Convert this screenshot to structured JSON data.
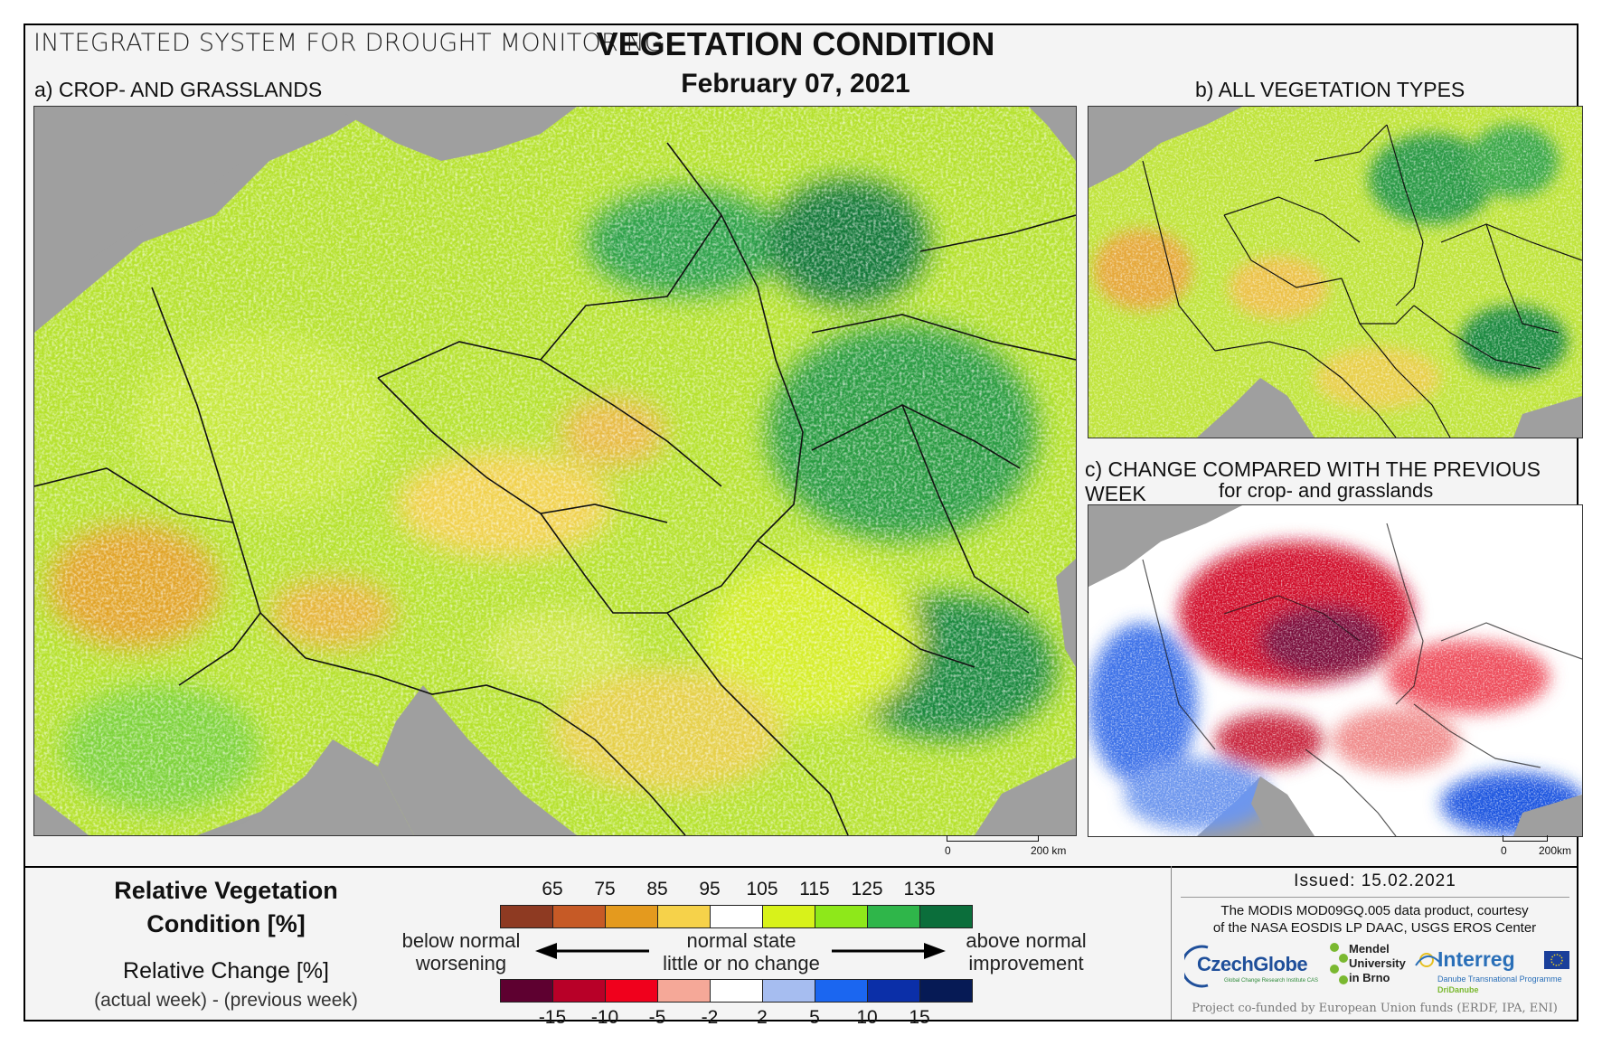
{
  "header": {
    "system_title": "INTEGRATED SYSTEM FOR DROUGHT MONITORING",
    "main_title": "VEGETATION CONDITION",
    "date": "February 07, 2021"
  },
  "panels": {
    "a": {
      "label": "a) CROP- AND GRASSLANDS",
      "scale_start": "0",
      "scale_end": "200 km"
    },
    "b": {
      "label": "b) ALL VEGETATION TYPES"
    },
    "c": {
      "label": "c) CHANGE COMPARED WITH THE PREVIOUS WEEK",
      "sublabel": "for crop- and grasslands",
      "scale_start": "0",
      "scale_end": "200km"
    }
  },
  "legend": {
    "condition_title_line1": "Relative Vegetation",
    "condition_title_line2": "Condition [%]",
    "change_title": "Relative Change [%]",
    "change_subtitle": "(actual week) - (previous week)",
    "condition_ticks": [
      "65",
      "75",
      "85",
      "95",
      "105",
      "115",
      "125",
      "135"
    ],
    "condition_colors": [
      "#8e3a22",
      "#c65a26",
      "#e49a1e",
      "#f6d24a",
      "#ffffff",
      "#d8f21a",
      "#8ee81a",
      "#2fb64a",
      "#0b6e3b"
    ],
    "change_ticks": [
      "-15",
      "-10",
      "-5",
      "-2",
      "2",
      "5",
      "10",
      "15"
    ],
    "change_colors": [
      "#5e0030",
      "#b80028",
      "#f0001c",
      "#f5a898",
      "#ffffff",
      "#a6bdf0",
      "#1b66f0",
      "#0b2fa8",
      "#061a55"
    ],
    "below_line1": "below normal",
    "below_line2": "worsening",
    "normal_line1": "normal state",
    "normal_line2": "little or no change",
    "above_line1": "above normal",
    "above_line2": "improvement"
  },
  "credits": {
    "issued": "Issued: 15.02.2021",
    "source_line1": "The MODIS MOD09GQ.005 data product, courtesy",
    "source_line2": "of the NASA EOSDIS LP DAAC, USGS EROS Center",
    "czechglobe": "CzechGlobe",
    "czechglobe_sub": "Global Change Research Institute CAS",
    "mendel_line1": "Mendel",
    "mendel_line2": "University",
    "mendel_line3": "in Brno",
    "interreg": "Interreg",
    "interreg_sub1": "Danube Transnational Programme",
    "interreg_sub2": "DriDanube",
    "funding": "Project co-funded by European Union funds (ERDF, IPA, ENI)"
  }
}
